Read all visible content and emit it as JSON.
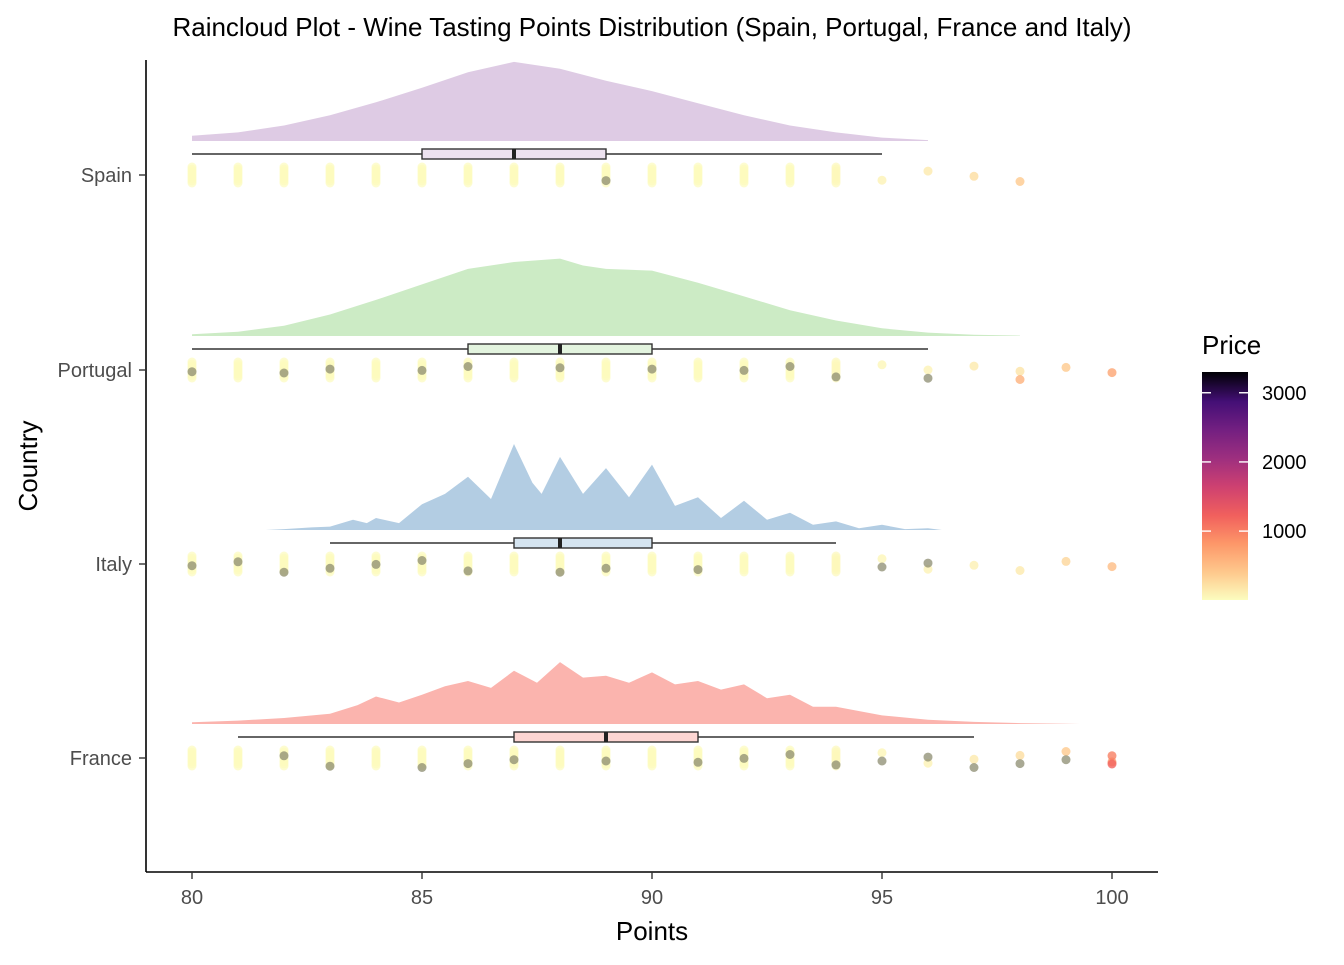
{
  "chart_data": {
    "type": "raincloud",
    "title": "Raincloud Plot - Wine Tasting Points Distribution (Spain, Portugal, France and Italy)",
    "xlabel": "Points",
    "ylabel": "Country",
    "xlim": [
      79,
      101
    ],
    "x_ticks": [
      80,
      85,
      90,
      95,
      100
    ],
    "grid": false,
    "categories": [
      "Spain",
      "Portugal",
      "Italy",
      "France"
    ],
    "legend": {
      "title": "Price",
      "position": "right",
      "colormap": "magma",
      "range": [
        4,
        3300
      ],
      "ticks": [
        1000,
        2000,
        3000
      ]
    },
    "series": [
      {
        "name": "Spain",
        "color": "#decbe4",
        "box": {
          "min": 80,
          "q1": 85,
          "median": 87,
          "q3": 89,
          "max": 95
        },
        "density": [
          [
            80,
            0.06
          ],
          [
            81,
            0.1
          ],
          [
            82,
            0.18
          ],
          [
            83,
            0.3
          ],
          [
            84,
            0.45
          ],
          [
            85,
            0.62
          ],
          [
            86,
            0.8
          ],
          [
            87,
            0.92
          ],
          [
            88,
            0.84
          ],
          [
            89,
            0.7
          ],
          [
            90,
            0.58
          ],
          [
            91,
            0.44
          ],
          [
            92,
            0.3
          ],
          [
            93,
            0.18
          ],
          [
            94,
            0.1
          ],
          [
            95,
            0.04
          ],
          [
            96,
            0.01
          ]
        ],
        "points": [
          {
            "x": 80,
            "p": 20
          },
          {
            "x": 81,
            "p": 20
          },
          {
            "x": 82,
            "p": 20
          },
          {
            "x": 83,
            "p": 20
          },
          {
            "x": 84,
            "p": 20
          },
          {
            "x": 85,
            "p": 20
          },
          {
            "x": 86,
            "p": 20
          },
          {
            "x": 87,
            "p": 20
          },
          {
            "x": 88,
            "p": 20
          },
          {
            "x": 89,
            "p": 20
          },
          {
            "x": 89,
            "p": 3000,
            "g": true
          },
          {
            "x": 90,
            "p": 20
          },
          {
            "x": 91,
            "p": 20
          },
          {
            "x": 92,
            "p": 20
          },
          {
            "x": 93,
            "p": 20
          },
          {
            "x": 94,
            "p": 40
          },
          {
            "x": 95,
            "p": 80
          },
          {
            "x": 96,
            "p": 150
          },
          {
            "x": 97,
            "p": 250
          },
          {
            "x": 98,
            "p": 400
          }
        ]
      },
      {
        "name": "Portugal",
        "color": "#ccebc5",
        "box": {
          "min": 80,
          "q1": 86,
          "median": 88,
          "q3": 90,
          "max": 96
        },
        "density": [
          [
            80,
            0.02
          ],
          [
            81,
            0.05
          ],
          [
            82,
            0.12
          ],
          [
            83,
            0.25
          ],
          [
            84,
            0.42
          ],
          [
            85,
            0.6
          ],
          [
            86,
            0.78
          ],
          [
            87,
            0.86
          ],
          [
            88,
            0.9
          ],
          [
            88.5,
            0.82
          ],
          [
            89,
            0.78
          ],
          [
            90,
            0.76
          ],
          [
            91,
            0.62
          ],
          [
            92,
            0.46
          ],
          [
            93,
            0.3
          ],
          [
            94,
            0.18
          ],
          [
            95,
            0.09
          ],
          [
            96,
            0.04
          ],
          [
            97,
            0.015
          ],
          [
            98,
            0.005
          ]
        ],
        "points": [
          {
            "x": 80,
            "p": 20
          },
          {
            "x": 80,
            "p": 3000,
            "g": true
          },
          {
            "x": 81,
            "p": 20
          },
          {
            "x": 82,
            "p": 20
          },
          {
            "x": 82,
            "p": 3000,
            "g": true
          },
          {
            "x": 83,
            "p": 20
          },
          {
            "x": 83,
            "p": 3000,
            "g": true
          },
          {
            "x": 84,
            "p": 20
          },
          {
            "x": 85,
            "p": 20
          },
          {
            "x": 85,
            "p": 3000,
            "g": true
          },
          {
            "x": 86,
            "p": 20
          },
          {
            "x": 86,
            "p": 3000,
            "g": true
          },
          {
            "x": 87,
            "p": 20
          },
          {
            "x": 88,
            "p": 20
          },
          {
            "x": 88,
            "p": 3000,
            "g": true
          },
          {
            "x": 89,
            "p": 20
          },
          {
            "x": 90,
            "p": 20
          },
          {
            "x": 90,
            "p": 3000,
            "g": true
          },
          {
            "x": 91,
            "p": 20
          },
          {
            "x": 92,
            "p": 20
          },
          {
            "x": 92,
            "p": 3000,
            "g": true
          },
          {
            "x": 93,
            "p": 20
          },
          {
            "x": 93,
            "p": 3000,
            "g": true
          },
          {
            "x": 94,
            "p": 40
          },
          {
            "x": 94,
            "p": 3000,
            "g": true
          },
          {
            "x": 95,
            "p": 60
          },
          {
            "x": 96,
            "p": 80
          },
          {
            "x": 96,
            "p": 3000,
            "g": true
          },
          {
            "x": 97,
            "p": 150
          },
          {
            "x": 98,
            "p": 200
          },
          {
            "x": 98,
            "p": 600
          },
          {
            "x": 99,
            "p": 400
          },
          {
            "x": 100,
            "p": 700
          }
        ]
      },
      {
        "name": "Italy",
        "color": "#b3cde3",
        "box": {
          "min": 83,
          "q1": 87,
          "median": 88,
          "q3": 90,
          "max": 94
        },
        "density": [
          [
            81.6,
            0.0
          ],
          [
            82,
            0.01
          ],
          [
            82.6,
            0.03
          ],
          [
            83,
            0.04
          ],
          [
            83.5,
            0.12
          ],
          [
            83.8,
            0.08
          ],
          [
            84,
            0.14
          ],
          [
            84.5,
            0.08
          ],
          [
            85,
            0.3
          ],
          [
            85.5,
            0.42
          ],
          [
            86,
            0.62
          ],
          [
            86.5,
            0.36
          ],
          [
            87,
            1.0
          ],
          [
            87.4,
            0.55
          ],
          [
            87.6,
            0.42
          ],
          [
            88,
            0.85
          ],
          [
            88.5,
            0.42
          ],
          [
            89,
            0.72
          ],
          [
            89.5,
            0.38
          ],
          [
            90,
            0.76
          ],
          [
            90.5,
            0.28
          ],
          [
            91,
            0.38
          ],
          [
            91.5,
            0.14
          ],
          [
            92,
            0.34
          ],
          [
            92.5,
            0.12
          ],
          [
            93,
            0.2
          ],
          [
            93.5,
            0.06
          ],
          [
            94,
            0.1
          ],
          [
            94.5,
            0.02
          ],
          [
            95,
            0.06
          ],
          [
            95.5,
            0.01
          ],
          [
            96,
            0.02
          ],
          [
            96.3,
            0.0
          ]
        ],
        "points": [
          {
            "x": 80,
            "p": 20
          },
          {
            "x": 80,
            "p": 3000,
            "g": true
          },
          {
            "x": 81,
            "p": 20
          },
          {
            "x": 81,
            "p": 3000,
            "g": true
          },
          {
            "x": 82,
            "p": 20
          },
          {
            "x": 82,
            "p": 3000,
            "g": true
          },
          {
            "x": 83,
            "p": 20
          },
          {
            "x": 83,
            "p": 3000,
            "g": true
          },
          {
            "x": 84,
            "p": 20
          },
          {
            "x": 84,
            "p": 3000,
            "g": true
          },
          {
            "x": 85,
            "p": 20
          },
          {
            "x": 85,
            "p": 3000,
            "g": true
          },
          {
            "x": 86,
            "p": 20
          },
          {
            "x": 86,
            "p": 3000,
            "g": true
          },
          {
            "x": 87,
            "p": 20
          },
          {
            "x": 88,
            "p": 20
          },
          {
            "x": 88,
            "p": 3000,
            "g": true
          },
          {
            "x": 89,
            "p": 20
          },
          {
            "x": 89,
            "p": 3000,
            "g": true
          },
          {
            "x": 90,
            "p": 20
          },
          {
            "x": 91,
            "p": 20
          },
          {
            "x": 91,
            "p": 3000,
            "g": true
          },
          {
            "x": 92,
            "p": 20
          },
          {
            "x": 93,
            "p": 20
          },
          {
            "x": 94,
            "p": 40
          },
          {
            "x": 95,
            "p": 60
          },
          {
            "x": 95,
            "p": 3000,
            "g": true
          },
          {
            "x": 96,
            "p": 80
          },
          {
            "x": 96,
            "p": 3000,
            "g": true
          },
          {
            "x": 97,
            "p": 100
          },
          {
            "x": 98,
            "p": 150
          },
          {
            "x": 99,
            "p": 300
          },
          {
            "x": 100,
            "p": 500
          }
        ]
      },
      {
        "name": "France",
        "color": "#fbb4ae",
        "box": {
          "min": 81,
          "q1": 87,
          "median": 89,
          "q3": 91,
          "max": 97
        },
        "density": [
          [
            80,
            0.02
          ],
          [
            81,
            0.04
          ],
          [
            82,
            0.07
          ],
          [
            83,
            0.12
          ],
          [
            83.6,
            0.22
          ],
          [
            84,
            0.32
          ],
          [
            84.5,
            0.25
          ],
          [
            85,
            0.34
          ],
          [
            85.5,
            0.44
          ],
          [
            86,
            0.5
          ],
          [
            86.5,
            0.42
          ],
          [
            87,
            0.62
          ],
          [
            87.5,
            0.48
          ],
          [
            88,
            0.72
          ],
          [
            88.5,
            0.54
          ],
          [
            89,
            0.56
          ],
          [
            89.5,
            0.48
          ],
          [
            90,
            0.6
          ],
          [
            90.5,
            0.46
          ],
          [
            91,
            0.5
          ],
          [
            91.5,
            0.4
          ],
          [
            92,
            0.46
          ],
          [
            92.5,
            0.3
          ],
          [
            93,
            0.34
          ],
          [
            93.5,
            0.2
          ],
          [
            94,
            0.2
          ],
          [
            95,
            0.1
          ],
          [
            96,
            0.05
          ],
          [
            97,
            0.025
          ],
          [
            98,
            0.01
          ],
          [
            99,
            0.004
          ],
          [
            99.3,
            0.0
          ]
        ],
        "points": [
          {
            "x": 80,
            "p": 20
          },
          {
            "x": 81,
            "p": 20
          },
          {
            "x": 82,
            "p": 20
          },
          {
            "x": 82,
            "p": 3000,
            "g": true
          },
          {
            "x": 83,
            "p": 20
          },
          {
            "x": 83,
            "p": 3000,
            "g": true
          },
          {
            "x": 84,
            "p": 20
          },
          {
            "x": 85,
            "p": 20
          },
          {
            "x": 85,
            "p": 3000,
            "g": true
          },
          {
            "x": 86,
            "p": 20
          },
          {
            "x": 86,
            "p": 3000,
            "g": true
          },
          {
            "x": 87,
            "p": 20
          },
          {
            "x": 87,
            "p": 3000,
            "g": true
          },
          {
            "x": 88,
            "p": 20
          },
          {
            "x": 89,
            "p": 20
          },
          {
            "x": 89,
            "p": 3000,
            "g": true
          },
          {
            "x": 90,
            "p": 20
          },
          {
            "x": 91,
            "p": 20
          },
          {
            "x": 91,
            "p": 3000,
            "g": true
          },
          {
            "x": 92,
            "p": 20
          },
          {
            "x": 92,
            "p": 3000,
            "g": true
          },
          {
            "x": 93,
            "p": 20
          },
          {
            "x": 93,
            "p": 3000,
            "g": true
          },
          {
            "x": 94,
            "p": 40
          },
          {
            "x": 94,
            "p": 3000,
            "g": true
          },
          {
            "x": 95,
            "p": 60
          },
          {
            "x": 95,
            "p": 3000,
            "g": true
          },
          {
            "x": 96,
            "p": 80
          },
          {
            "x": 96,
            "p": 3000,
            "g": true
          },
          {
            "x": 97,
            "p": 150
          },
          {
            "x": 97,
            "p": 3000,
            "g": true
          },
          {
            "x": 98,
            "p": 250
          },
          {
            "x": 98,
            "p": 3000,
            "g": true
          },
          {
            "x": 99,
            "p": 400
          },
          {
            "x": 99,
            "p": 3000,
            "g": true
          },
          {
            "x": 100,
            "p": 800
          },
          {
            "x": 100,
            "p": 1000
          },
          {
            "x": 100,
            "p": 1200
          }
        ]
      }
    ]
  }
}
